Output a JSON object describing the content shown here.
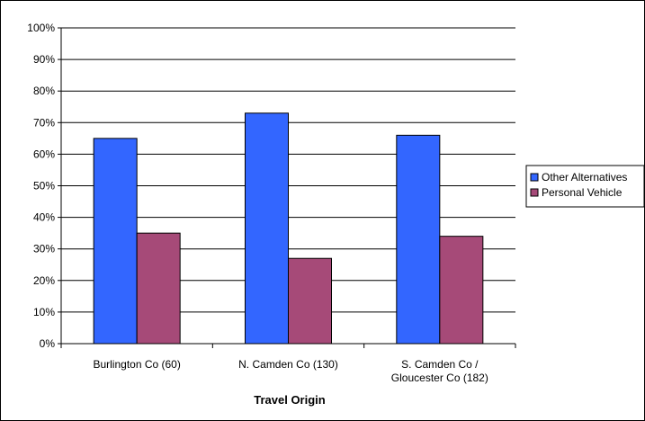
{
  "chart_data": {
    "type": "bar",
    "categories": [
      [
        "Burlington Co (60)"
      ],
      [
        "N. Camden Co (130)"
      ],
      [
        "S. Camden Co /",
        "Gloucester Co (182)"
      ]
    ],
    "series": [
      {
        "name": "Other Alternatives",
        "values": [
          65,
          73,
          66
        ],
        "color": "#3366FF"
      },
      {
        "name": "Personal Vehicle",
        "values": [
          35,
          27,
          34
        ],
        "color": "#A64A78"
      }
    ],
    "ylim": [
      0,
      100
    ],
    "yticks": [
      0,
      10,
      20,
      30,
      40,
      50,
      60,
      70,
      80,
      90,
      100
    ],
    "ytick_labels": [
      "0%",
      "10%",
      "20%",
      "30%",
      "40%",
      "50%",
      "60%",
      "70%",
      "80%",
      "90%",
      "100%"
    ],
    "xlabel": "Travel Origin",
    "ylabel": "",
    "title": "",
    "grid": true,
    "legend_position": "right"
  }
}
